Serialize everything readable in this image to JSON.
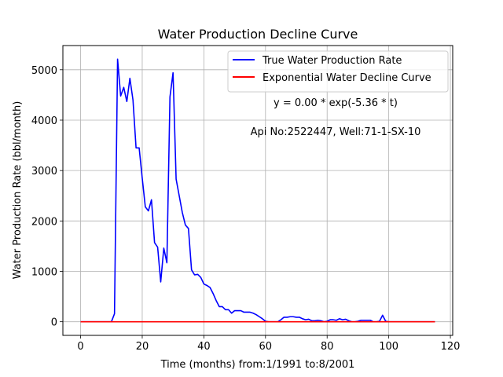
{
  "chart_data": {
    "type": "line",
    "title": "Water Production Decline Curve",
    "xlabel": "Time (months) from:1/1991 to:8/2001",
    "ylabel": "Water Production Rate (bbl/month)",
    "xlim": [
      -5.75,
      120.75
    ],
    "ylim": [
      -270,
      5480
    ],
    "xticks": [
      0,
      20,
      40,
      60,
      80,
      100,
      120
    ],
    "yticks": [
      0,
      1000,
      2000,
      3000,
      4000,
      5000
    ],
    "grid": true,
    "legend_position": "top-right",
    "annotations": [
      "y = 0.00 * exp(-5.36 * t)",
      "Api No:2522447, Well:71-1-SX-10"
    ],
    "series": [
      {
        "name": "True Water Production Rate",
        "color": "#0000ff",
        "points": [
          [
            0,
            0
          ],
          [
            1,
            0
          ],
          [
            2,
            0
          ],
          [
            3,
            0
          ],
          [
            4,
            0
          ],
          [
            5,
            0
          ],
          [
            6,
            0
          ],
          [
            7,
            0
          ],
          [
            8,
            0
          ],
          [
            9,
            0
          ],
          [
            10,
            0
          ],
          [
            11,
            160
          ],
          [
            12,
            5210
          ],
          [
            13,
            4480
          ],
          [
            14,
            4650
          ],
          [
            15,
            4370
          ],
          [
            16,
            4830
          ],
          [
            17,
            4400
          ],
          [
            18,
            3450
          ],
          [
            19,
            3450
          ],
          [
            20,
            2850
          ],
          [
            21,
            2280
          ],
          [
            22,
            2200
          ],
          [
            23,
            2420
          ],
          [
            24,
            1570
          ],
          [
            25,
            1480
          ],
          [
            26,
            790
          ],
          [
            27,
            1460
          ],
          [
            28,
            1170
          ],
          [
            29,
            4460
          ],
          [
            30,
            4940
          ],
          [
            31,
            2830
          ],
          [
            32,
            2500
          ],
          [
            33,
            2170
          ],
          [
            34,
            1920
          ],
          [
            35,
            1850
          ],
          [
            36,
            1030
          ],
          [
            37,
            930
          ],
          [
            38,
            940
          ],
          [
            39,
            880
          ],
          [
            40,
            750
          ],
          [
            41,
            720
          ],
          [
            42,
            680
          ],
          [
            43,
            560
          ],
          [
            44,
            420
          ],
          [
            45,
            300
          ],
          [
            46,
            300
          ],
          [
            47,
            240
          ],
          [
            48,
            240
          ],
          [
            49,
            170
          ],
          [
            50,
            220
          ],
          [
            51,
            220
          ],
          [
            52,
            220
          ],
          [
            53,
            190
          ],
          [
            54,
            190
          ],
          [
            55,
            190
          ],
          [
            56,
            170
          ],
          [
            57,
            140
          ],
          [
            58,
            100
          ],
          [
            59,
            60
          ],
          [
            60,
            10
          ],
          [
            61,
            0
          ],
          [
            62,
            0
          ],
          [
            63,
            0
          ],
          [
            64,
            0
          ],
          [
            65,
            40
          ],
          [
            66,
            90
          ],
          [
            67,
            90
          ],
          [
            68,
            100
          ],
          [
            69,
            100
          ],
          [
            70,
            90
          ],
          [
            71,
            90
          ],
          [
            72,
            60
          ],
          [
            73,
            40
          ],
          [
            74,
            50
          ],
          [
            75,
            20
          ],
          [
            76,
            20
          ],
          [
            77,
            30
          ],
          [
            78,
            20
          ],
          [
            79,
            0
          ],
          [
            80,
            10
          ],
          [
            81,
            40
          ],
          [
            82,
            40
          ],
          [
            83,
            30
          ],
          [
            84,
            60
          ],
          [
            85,
            40
          ],
          [
            86,
            50
          ],
          [
            87,
            20
          ],
          [
            88,
            0
          ],
          [
            89,
            0
          ],
          [
            90,
            10
          ],
          [
            91,
            30
          ],
          [
            92,
            30
          ],
          [
            93,
            30
          ],
          [
            94,
            30
          ],
          [
            95,
            0
          ],
          [
            96,
            0
          ],
          [
            97,
            10
          ],
          [
            98,
            130
          ],
          [
            99,
            10
          ],
          [
            100,
            0
          ],
          [
            101,
            0
          ],
          [
            102,
            0
          ],
          [
            103,
            0
          ],
          [
            104,
            0
          ],
          [
            105,
            0
          ],
          [
            106,
            0
          ],
          [
            107,
            0
          ],
          [
            108,
            0
          ],
          [
            109,
            0
          ],
          [
            110,
            0
          ],
          [
            111,
            0
          ],
          [
            112,
            0
          ],
          [
            113,
            0
          ],
          [
            114,
            0
          ],
          [
            115,
            0
          ]
        ]
      },
      {
        "name": "Exponential Water Decline Curve",
        "color": "#ff0000",
        "points": [
          [
            0,
            0
          ],
          [
            115,
            0
          ]
        ]
      }
    ]
  }
}
